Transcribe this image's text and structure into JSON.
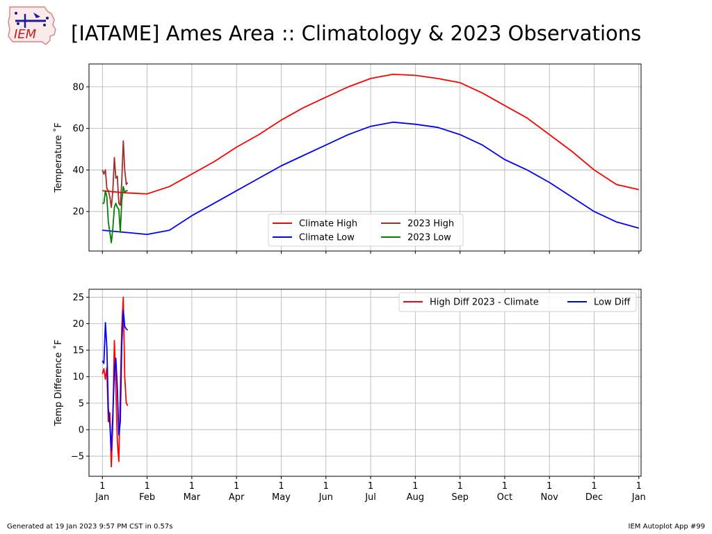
{
  "header": {
    "title": "[IATAME] Ames Area :: Climatology & 2023 Observations",
    "logo_text": "IEM"
  },
  "footer": {
    "generated": "Generated at 19 Jan 2023 9:57 PM CST in 0.57s",
    "app": "IEM Autoplot App #99"
  },
  "colors": {
    "climate_high": "#ff0000",
    "climate_low": "#0000ff",
    "obs_high": "#a52a2a",
    "obs_low": "#008000",
    "grid": "#b0b0b0"
  },
  "chart_data": [
    {
      "type": "line",
      "ylabel": "Temperature $^\\circ$F",
      "ylim": [
        1,
        91
      ],
      "yticks": [
        20,
        40,
        60,
        80
      ],
      "xlim": [
        -0.3,
        12.05
      ],
      "xticks": [
        0,
        1,
        2,
        3,
        4,
        5,
        6,
        7,
        8,
        9,
        10,
        11,
        12
      ],
      "xtick_labels": [
        "1",
        "1",
        "1",
        "1",
        "1",
        "1",
        "1",
        "1",
        "1",
        "1",
        "1",
        "1",
        "1"
      ],
      "xtick_months": [
        "Jan",
        "Feb",
        "Mar",
        "Apr",
        "May",
        "Jun",
        "Jul",
        "Aug",
        "Sep",
        "Oct",
        "Nov",
        "Dec",
        "Jan"
      ],
      "grid": true,
      "legend_location": "bottom-center",
      "legend_columns": 2,
      "series": [
        {
          "name": "Climate High",
          "color": "#ff0000",
          "x": [
            0,
            0.5,
            1,
            1.5,
            2,
            2.5,
            3,
            3.5,
            4,
            4.5,
            5,
            5.5,
            6,
            6.5,
            7,
            7.5,
            8,
            8.5,
            9,
            9.5,
            10,
            10.5,
            11,
            11.5,
            12
          ],
          "y": [
            30,
            29,
            28.5,
            32,
            38,
            44,
            51,
            57,
            64,
            70,
            75,
            80,
            84,
            86,
            85.5,
            84,
            82,
            77,
            71,
            65,
            57,
            49,
            40,
            33,
            30.5
          ]
        },
        {
          "name": "Climate Low",
          "color": "#0000ff",
          "x": [
            0,
            0.5,
            1,
            1.5,
            2,
            2.5,
            3,
            3.5,
            4,
            4.5,
            5,
            5.5,
            6,
            6.5,
            7,
            7.5,
            8,
            8.5,
            9,
            9.5,
            10,
            10.5,
            11,
            11.5,
            12
          ],
          "y": [
            11,
            10,
            9,
            11,
            18,
            24,
            30,
            36,
            42,
            47,
            52,
            57,
            61,
            63,
            62,
            60.5,
            57,
            52,
            45,
            40,
            34,
            27,
            20,
            15,
            12
          ]
        },
        {
          "name": "2023 High",
          "color": "#a52a2a",
          "x": [
            0,
            0.033,
            0.067,
            0.1,
            0.133,
            0.167,
            0.2,
            0.233,
            0.267,
            0.3,
            0.333,
            0.367,
            0.4,
            0.433,
            0.467,
            0.5,
            0.533,
            0.567
          ],
          "y": [
            40,
            38,
            40,
            31,
            30,
            27,
            22,
            30,
            46,
            36,
            37,
            24,
            23,
            34,
            54,
            40,
            33,
            34
          ]
        },
        {
          "name": "2023 Low",
          "color": "#008000",
          "x": [
            0,
            0.033,
            0.067,
            0.1,
            0.133,
            0.167,
            0.2,
            0.233,
            0.267,
            0.3,
            0.333,
            0.367,
            0.4,
            0.433,
            0.467,
            0.5,
            0.533,
            0.567
          ],
          "y": [
            24,
            24,
            30,
            27,
            15,
            10,
            5,
            12,
            22,
            24,
            22,
            21,
            10,
            25,
            32,
            29,
            30,
            30
          ]
        }
      ]
    },
    {
      "type": "line",
      "ylabel": "Temp Difference $^\\circ$F",
      "ylim": [
        -8.8,
        26.5
      ],
      "yticks": [
        -5,
        0,
        5,
        10,
        15,
        20,
        25
      ],
      "xlim": [
        -0.3,
        12.05
      ],
      "xticks": [
        0,
        1,
        2,
        3,
        4,
        5,
        6,
        7,
        8,
        9,
        10,
        11,
        12
      ],
      "xtick_labels": [
        "1",
        "1",
        "1",
        "1",
        "1",
        "1",
        "1",
        "1",
        "1",
        "1",
        "1",
        "1",
        "1"
      ],
      "xtick_months": [
        "Jan",
        "Feb",
        "Mar",
        "Apr",
        "May",
        "Jun",
        "Jul",
        "Aug",
        "Sep",
        "Oct",
        "Nov",
        "Dec",
        "Jan"
      ],
      "grid": true,
      "legend_location": "top-right",
      "legend_columns": 2,
      "series": [
        {
          "name": "High Diff 2023 - Climate",
          "color": "#ff0000",
          "x": [
            0,
            0.033,
            0.067,
            0.1,
            0.133,
            0.167,
            0.2,
            0.233,
            0.267,
            0.3,
            0.333,
            0.367,
            0.4,
            0.433,
            0.467,
            0.5,
            0.533,
            0.567
          ],
          "y": [
            10.5,
            11.5,
            9.5,
            11.7,
            1.5,
            3.2,
            -7.0,
            1.5,
            16.8,
            8.0,
            -2.0,
            -6.0,
            7.0,
            19.0,
            25.0,
            10.0,
            5.0,
            4.5
          ]
        },
        {
          "name": "Low Diff",
          "color": "#0000ff",
          "x": [
            0,
            0.033,
            0.067,
            0.1,
            0.133,
            0.167,
            0.2,
            0.233,
            0.267,
            0.3,
            0.333,
            0.367,
            0.4,
            0.433,
            0.467,
            0.5,
            0.533,
            0.567
          ],
          "y": [
            13.0,
            12.5,
            20.2,
            15.5,
            4.0,
            1.0,
            -4.0,
            3.0,
            11.0,
            13.5,
            8.0,
            -1.0,
            1.5,
            16.0,
            22.5,
            19.5,
            19.0,
            18.8
          ]
        }
      ]
    }
  ]
}
